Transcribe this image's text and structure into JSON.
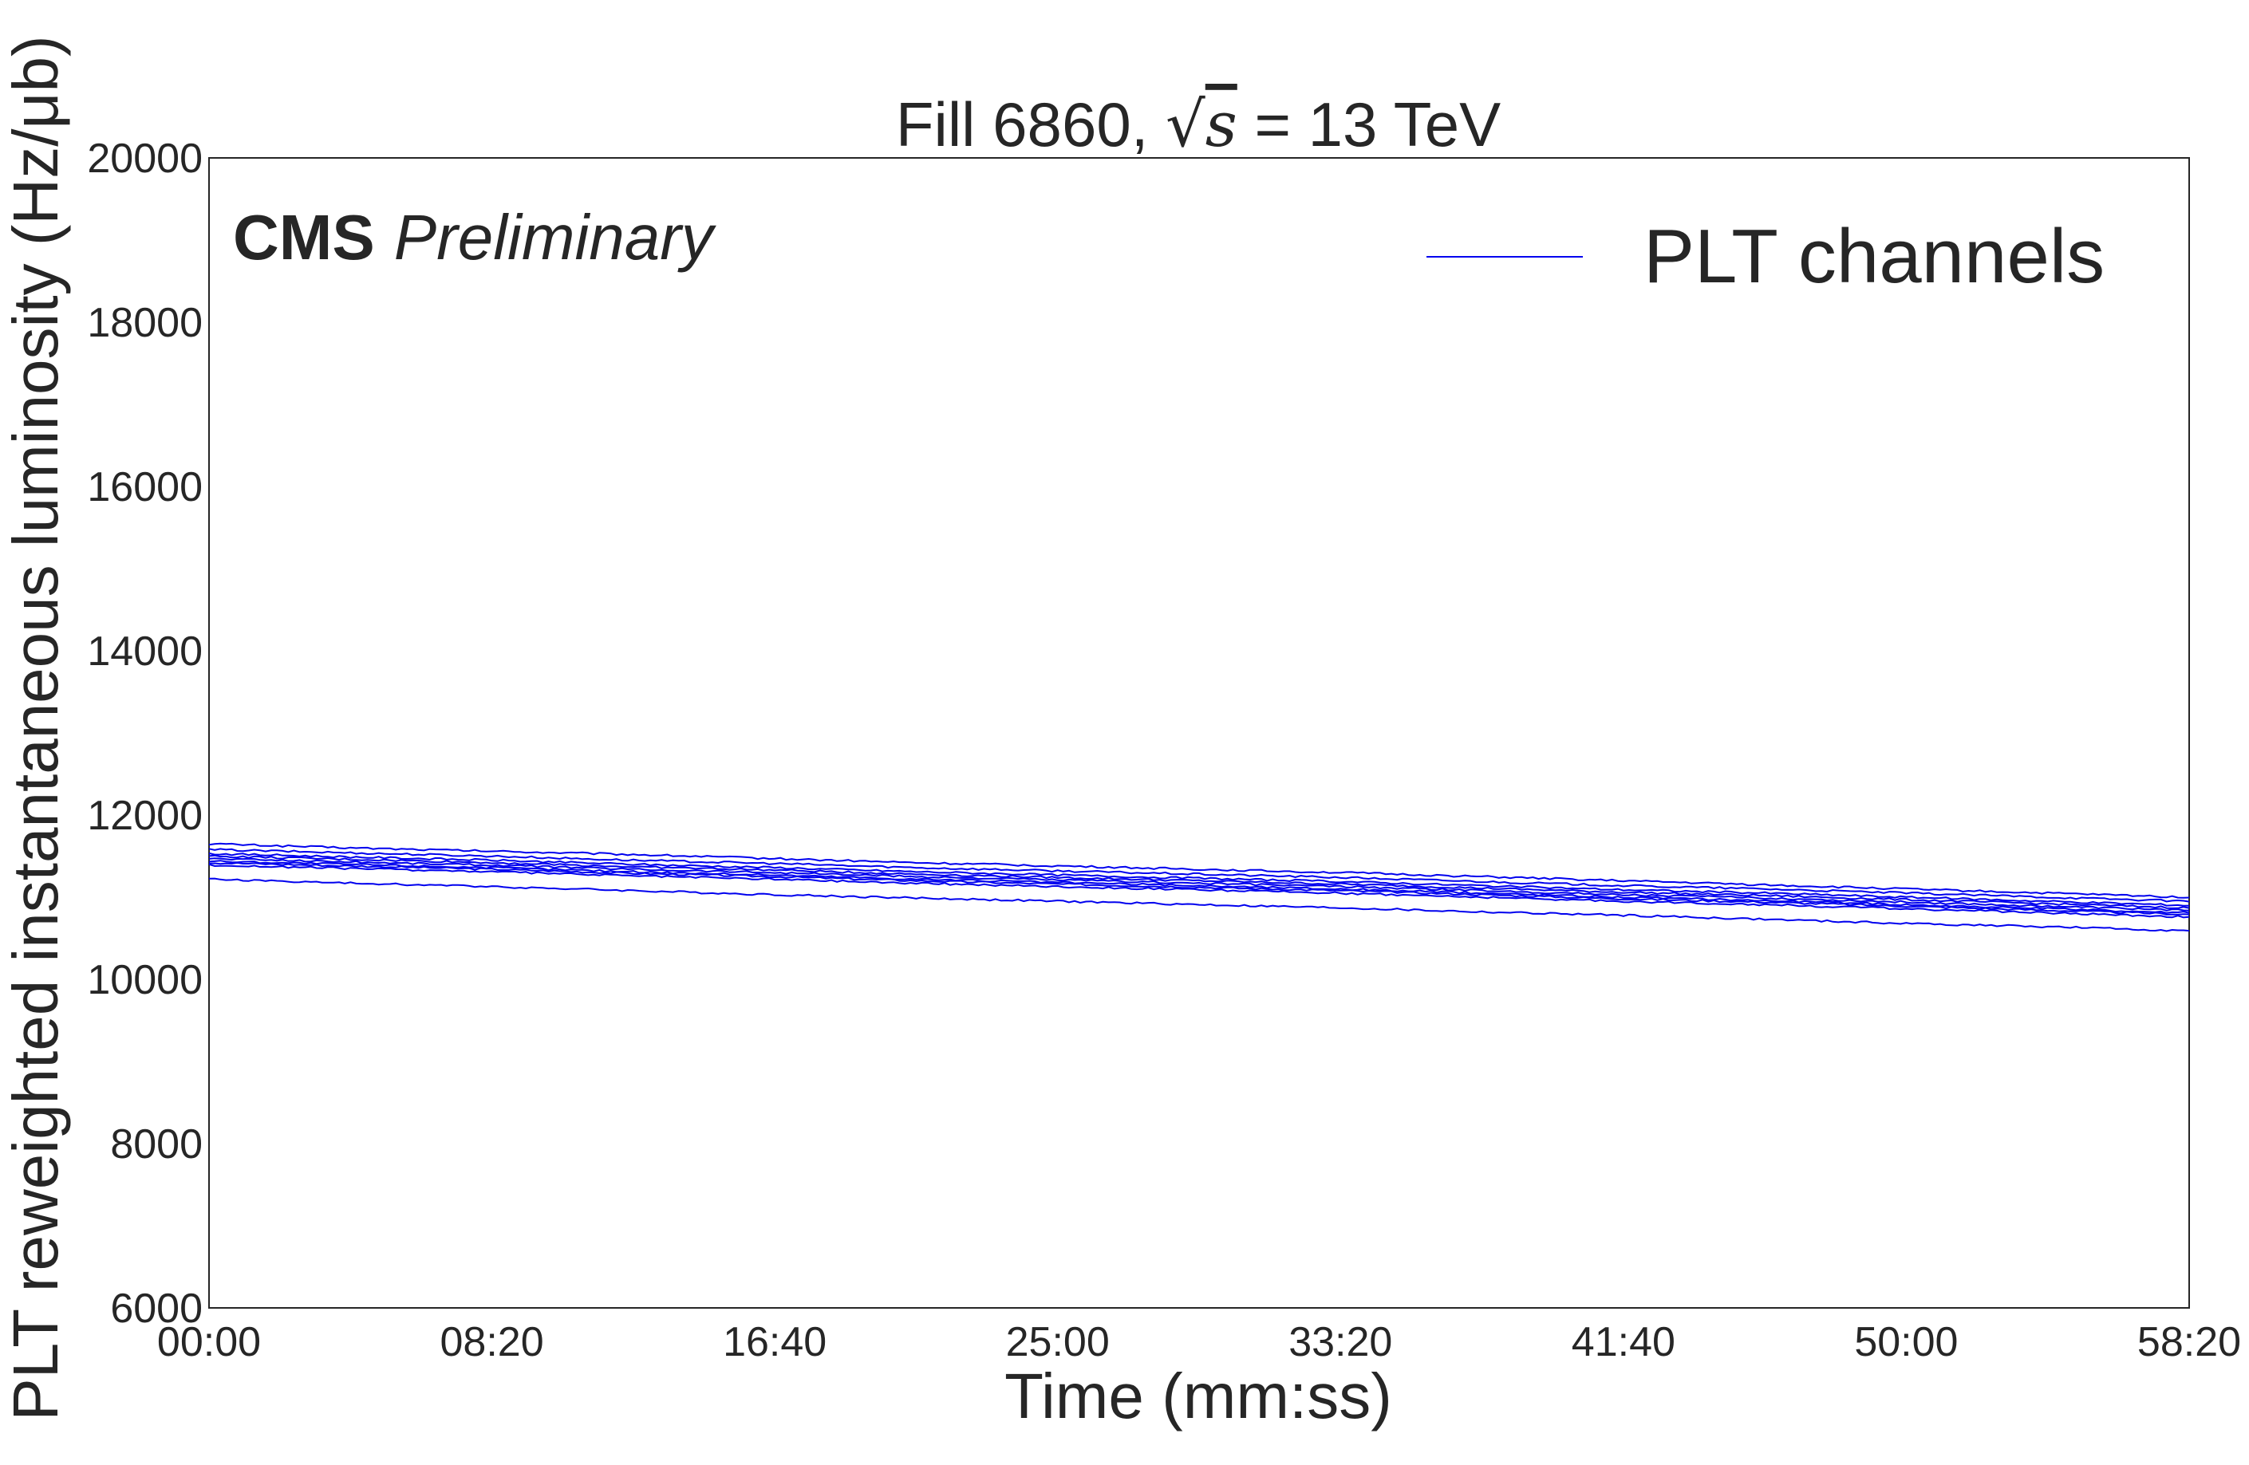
{
  "chart_data": {
    "type": "line",
    "title_prefix": "Fill 6860, ",
    "title_math": "s",
    "title_suffix": " = 13 TeV",
    "xlabel": "Time (mm:ss)",
    "ylabel": "PLT reweighted instantaneous luminosity (Hz/μb)",
    "experiment_label": "CMS",
    "status_label": "Preliminary",
    "legend": {
      "label": "PLT channels",
      "placement": "top-right"
    },
    "xlim": [
      0,
      3500
    ],
    "ylim": [
      6000,
      20000
    ],
    "x_ticks": [
      0,
      500,
      1000,
      1500,
      2000,
      2500,
      3000,
      3500
    ],
    "x_tick_labels": [
      "00:00",
      "08:20",
      "16:40",
      "25:00",
      "33:20",
      "41:40",
      "50:00",
      "58:20"
    ],
    "y_ticks": [
      6000,
      8000,
      10000,
      12000,
      14000,
      16000,
      18000,
      20000
    ],
    "y_tick_labels": [
      "6000",
      "8000",
      "10000",
      "12000",
      "14000",
      "16000",
      "18000",
      "20000"
    ],
    "line_color": "#0000ee",
    "x": [
      0,
      250,
      500,
      750,
      1000,
      1250,
      1500,
      1750,
      2000,
      2250,
      2500,
      2750,
      3000,
      3250,
      3500
    ],
    "series": [
      {
        "values": [
          11650,
          11600,
          11560,
          11520,
          11470,
          11420,
          11380,
          11340,
          11300,
          11250,
          11200,
          11150,
          11100,
          11050,
          11000
        ]
      },
      {
        "values": [
          11580,
          11540,
          11500,
          11450,
          11410,
          11360,
          11320,
          11280,
          11240,
          11190,
          11140,
          11100,
          11050,
          11000,
          10950
        ]
      },
      {
        "values": [
          11530,
          11490,
          11450,
          11400,
          11360,
          11310,
          11270,
          11230,
          11190,
          11140,
          11090,
          11050,
          11000,
          10950,
          10900
        ]
      },
      {
        "values": [
          11500,
          11460,
          11420,
          11370,
          11330,
          11280,
          11240,
          11200,
          11160,
          11110,
          11060,
          11020,
          10970,
          10920,
          10870
        ]
      },
      {
        "values": [
          11470,
          11430,
          11390,
          11340,
          11300,
          11250,
          11210,
          11170,
          11130,
          11080,
          11030,
          10990,
          10940,
          10890,
          10840
        ]
      },
      {
        "values": [
          11440,
          11400,
          11360,
          11310,
          11270,
          11220,
          11180,
          11140,
          11100,
          11050,
          11000,
          10960,
          10910,
          10860,
          10810
        ]
      },
      {
        "values": [
          11420,
          11380,
          11340,
          11290,
          11250,
          11200,
          11160,
          11120,
          11080,
          11030,
          10980,
          10940,
          10890,
          10840,
          10790
        ]
      },
      {
        "values": [
          11390,
          11350,
          11310,
          11260,
          11220,
          11170,
          11130,
          11090,
          11050,
          11000,
          10950,
          10910,
          10860,
          10810,
          10760
        ]
      },
      {
        "values": [
          11220,
          11170,
          11130,
          11080,
          11030,
          10990,
          10950,
          10910,
          10870,
          10820,
          10780,
          10730,
          10680,
          10640,
          10590
        ]
      }
    ]
  }
}
